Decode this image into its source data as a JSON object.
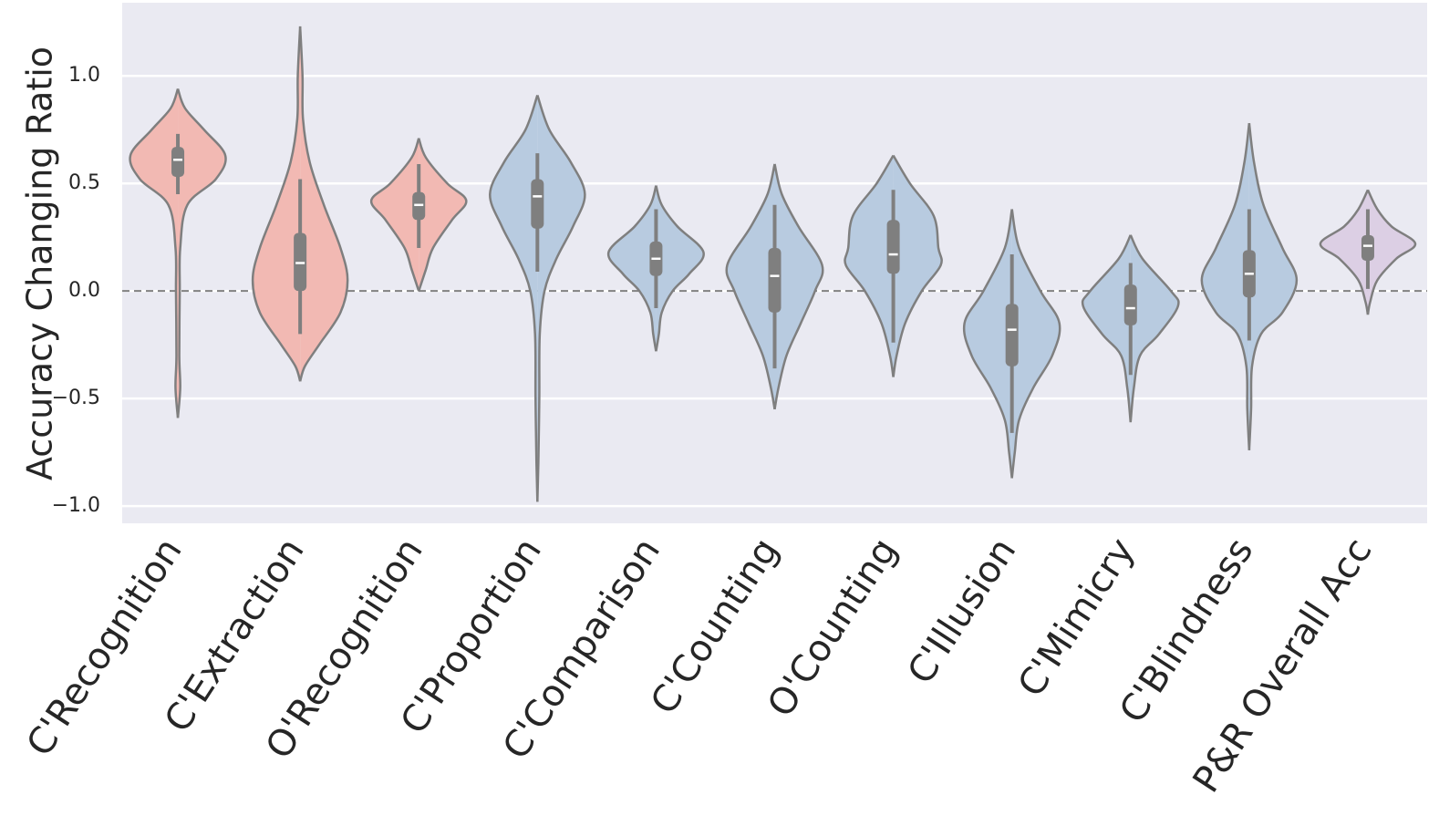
{
  "chart_data": {
    "type": "violin",
    "ylabel": "Accuracy Changing Ratio",
    "categories": [
      "C'Recognition",
      "C'Extraction",
      "O'Recognition",
      "C'Proportion",
      "C'Comparison",
      "C'Counting",
      "O'Counting",
      "C'Illusion",
      "C'Mimicry",
      "C'Blindness",
      "P&R Overall Acc"
    ],
    "colors": [
      "#f2b9b3",
      "#f2b9b3",
      "#f2b9b3",
      "#b8cbe0",
      "#b8cbe0",
      "#b8cbe0",
      "#b8cbe0",
      "#b8cbe0",
      "#b8cbe0",
      "#b8cbe0",
      "#dccfe4"
    ],
    "violins": [
      {
        "whisker_high": 0.73,
        "q3": 0.67,
        "median": 0.61,
        "q1": 0.53,
        "whisker_low": 0.45,
        "density_y": [
          0.94,
          0.85,
          0.75,
          0.63,
          0.52,
          0.4,
          0.2,
          0,
          -0.3,
          -0.45,
          -0.59
        ],
        "density": [
          0,
          0.15,
          0.55,
          1.0,
          0.8,
          0.2,
          0.05,
          0.04,
          0.03,
          0.05,
          0
        ]
      },
      {
        "whisker_high": 0.52,
        "q3": 0.27,
        "median": 0.13,
        "q1": 0.0,
        "whisker_low": -0.2,
        "density_y": [
          1.23,
          1.0,
          0.8,
          0.6,
          0.4,
          0.2,
          0.05,
          -0.1,
          -0.25,
          -0.35,
          -0.42
        ],
        "density": [
          0,
          0.05,
          0.06,
          0.2,
          0.5,
          0.85,
          1.0,
          0.85,
          0.4,
          0.1,
          0
        ]
      },
      {
        "whisker_high": 0.59,
        "q3": 0.46,
        "median": 0.4,
        "q1": 0.33,
        "whisker_low": 0.2,
        "density_y": [
          0.71,
          0.62,
          0.5,
          0.42,
          0.33,
          0.2,
          0.1,
          0
        ],
        "density": [
          0,
          0.15,
          0.6,
          1.0,
          0.7,
          0.3,
          0.15,
          0
        ]
      },
      {
        "whisker_high": 0.64,
        "q3": 0.52,
        "median": 0.44,
        "q1": 0.29,
        "whisker_low": 0.09,
        "density_y": [
          0.91,
          0.75,
          0.6,
          0.45,
          0.3,
          0.15,
          0,
          -0.2,
          -0.5,
          -0.8,
          -0.98
        ],
        "density": [
          0,
          0.25,
          0.7,
          1.0,
          0.75,
          0.4,
          0.15,
          0.05,
          0.04,
          0.02,
          0
        ]
      },
      {
        "whisker_high": 0.38,
        "q3": 0.23,
        "median": 0.15,
        "q1": 0.07,
        "whisker_low": -0.08,
        "density_y": [
          0.49,
          0.4,
          0.3,
          0.18,
          0.08,
          0,
          -0.1,
          -0.2,
          -0.28
        ],
        "density": [
          0,
          0.12,
          0.45,
          1.0,
          0.7,
          0.35,
          0.12,
          0.06,
          0
        ]
      },
      {
        "whisker_high": 0.4,
        "q3": 0.2,
        "median": 0.07,
        "q1": -0.1,
        "whisker_low": -0.36,
        "density_y": [
          0.59,
          0.45,
          0.3,
          0.12,
          0,
          -0.15,
          -0.3,
          -0.45,
          -0.55
        ],
        "density": [
          0,
          0.15,
          0.5,
          1.0,
          0.85,
          0.55,
          0.25,
          0.08,
          0
        ]
      },
      {
        "whisker_high": 0.47,
        "q3": 0.33,
        "median": 0.17,
        "q1": 0.08,
        "whisker_low": -0.24,
        "density_y": [
          0.63,
          0.5,
          0.35,
          0.2,
          0.12,
          0,
          -0.15,
          -0.3,
          -0.4
        ],
        "density": [
          0,
          0.35,
          0.85,
          0.95,
          1.0,
          0.6,
          0.25,
          0.07,
          0
        ]
      },
      {
        "whisker_high": 0.17,
        "q3": -0.06,
        "median": -0.18,
        "q1": -0.35,
        "whisker_low": -0.66,
        "density_y": [
          0.38,
          0.2,
          0,
          -0.15,
          -0.3,
          -0.45,
          -0.6,
          -0.75,
          -0.87
        ],
        "density": [
          0,
          0.15,
          0.6,
          1.0,
          0.85,
          0.45,
          0.15,
          0.06,
          0
        ]
      },
      {
        "whisker_high": 0.13,
        "q3": 0.03,
        "median": -0.08,
        "q1": -0.16,
        "whisker_low": -0.39,
        "density_y": [
          0.26,
          0.15,
          0,
          -0.07,
          -0.2,
          -0.3,
          -0.45,
          -0.61
        ],
        "density": [
          0,
          0.25,
          0.85,
          1.0,
          0.6,
          0.2,
          0.07,
          0
        ]
      },
      {
        "whisker_high": 0.38,
        "q3": 0.19,
        "median": 0.08,
        "q1": -0.03,
        "whisker_low": -0.23,
        "density_y": [
          0.78,
          0.6,
          0.4,
          0.2,
          0.05,
          -0.1,
          -0.2,
          -0.35,
          -0.55,
          -0.74
        ],
        "density": [
          0,
          0.1,
          0.3,
          0.7,
          1.0,
          0.7,
          0.25,
          0.06,
          0.04,
          0
        ]
      },
      {
        "whisker_high": 0.38,
        "q3": 0.26,
        "median": 0.21,
        "q1": 0.14,
        "whisker_low": 0.01,
        "density_y": [
          0.47,
          0.38,
          0.3,
          0.22,
          0.15,
          0.05,
          -0.05,
          -0.11
        ],
        "density": [
          0,
          0.2,
          0.5,
          1.0,
          0.6,
          0.2,
          0.05,
          0
        ]
      }
    ],
    "reference_line": 0,
    "ylim": [
      -1.08,
      1.34
    ],
    "yticks": [
      {
        "value": -1,
        "label": "−1.0"
      },
      {
        "value": -0.5,
        "label": "−0.5"
      },
      {
        "value": 0,
        "label": "0.0"
      },
      0.5,
      {
        "value": 1,
        "label": "1.0"
      }
    ],
    "grid": true
  }
}
